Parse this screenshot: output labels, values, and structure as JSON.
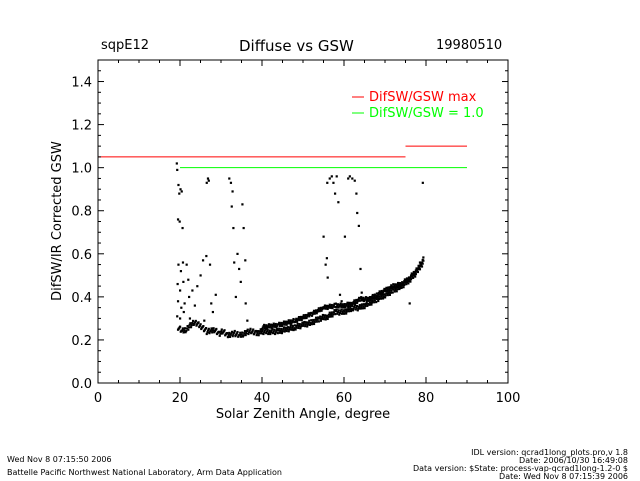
{
  "header": {
    "site": "sqpE12",
    "title": "Diffuse vs GSW",
    "date": "19980510"
  },
  "footer": {
    "left_line1": "Wed Nov  8 07:15:50 2006",
    "left_line2": "Battelle Pacific Northwest National Laboratory, Arm Data Application",
    "right_line1": "IDL version: qcrad1long_plots.pro,v 1.8",
    "right_line2": "Date: 2006/10/30 16:49:08",
    "right_line3": "Data version: $State: process-vap-qcrad1long-1.2-0 $",
    "right_line4": "Date: Wed Nov  8 07:15:39 2006"
  },
  "chart_data": {
    "type": "scatter",
    "title": "Diffuse vs GSW",
    "xlabel": "Solar Zenith Angle, degree",
    "ylabel": "DifSW/IR Corrected GSW",
    "xlim": [
      0,
      100
    ],
    "ylim": [
      0.0,
      1.5
    ],
    "xticks": [
      "0",
      "20",
      "40",
      "60",
      "80",
      "100"
    ],
    "yticks": [
      "0.0",
      "0.2",
      "0.4",
      "0.6",
      "0.8",
      "1.0",
      "1.2",
      "1.4"
    ],
    "legend": [
      {
        "label": "DifSW/GSW max",
        "color": "#ff0000"
      },
      {
        "label": "DifSW/GSW = 1.0",
        "color": "#00ff00"
      }
    ],
    "reference_lines": [
      {
        "name": "DifSW/GSW max",
        "color": "#ff0000",
        "segments": [
          [
            0,
            75,
            1.05
          ],
          [
            75,
            90,
            1.1
          ]
        ]
      },
      {
        "name": "DifSW/GSW = 1.0",
        "color": "#00ff00",
        "segments": [
          [
            20,
            90,
            1.0
          ]
        ]
      }
    ],
    "points": [
      [
        19.2,
        1.02
      ],
      [
        19.3,
        0.99
      ],
      [
        19.6,
        0.92
      ],
      [
        19.8,
        0.88
      ],
      [
        20.1,
        0.9
      ],
      [
        20.4,
        0.89
      ],
      [
        19.5,
        0.76
      ],
      [
        19.9,
        0.75
      ],
      [
        20.6,
        0.72
      ],
      [
        19.6,
        0.55
      ],
      [
        20.2,
        0.52
      ],
      [
        20.7,
        0.56
      ],
      [
        19.4,
        0.46
      ],
      [
        20.0,
        0.43
      ],
      [
        20.8,
        0.47
      ],
      [
        19.5,
        0.38
      ],
      [
        20.3,
        0.35
      ],
      [
        20.9,
        0.33
      ],
      [
        19.3,
        0.31
      ],
      [
        20.0,
        0.3
      ],
      [
        21.1,
        0.37
      ],
      [
        21.6,
        0.55
      ],
      [
        22.0,
        0.48
      ],
      [
        22.2,
        0.4
      ],
      [
        22.4,
        0.3
      ],
      [
        23.0,
        0.43
      ],
      [
        23.6,
        0.36
      ],
      [
        24.2,
        0.45
      ],
      [
        25.0,
        0.5
      ],
      [
        25.6,
        0.57
      ],
      [
        25.9,
        0.29
      ],
      [
        26.4,
        0.59
      ],
      [
        26.5,
        0.93
      ],
      [
        26.8,
        0.95
      ],
      [
        27.0,
        0.94
      ],
      [
        27.3,
        0.55
      ],
      [
        27.6,
        0.37
      ],
      [
        28.0,
        0.33
      ],
      [
        28.7,
        0.41
      ],
      [
        32.0,
        0.95
      ],
      [
        32.4,
        0.93
      ],
      [
        32.8,
        0.89
      ],
      [
        32.6,
        0.82
      ],
      [
        33.0,
        0.72
      ],
      [
        33.2,
        0.56
      ],
      [
        33.6,
        0.4
      ],
      [
        34.0,
        0.6
      ],
      [
        34.4,
        0.53
      ],
      [
        34.8,
        0.47
      ],
      [
        35.2,
        0.83
      ],
      [
        35.5,
        0.72
      ],
      [
        35.9,
        0.57
      ],
      [
        36.0,
        0.37
      ],
      [
        36.4,
        0.29
      ],
      [
        55.0,
        0.68
      ],
      [
        55.5,
        0.55
      ],
      [
        55.8,
        0.58
      ],
      [
        56.0,
        0.49
      ],
      [
        56.5,
        0.95
      ],
      [
        57.0,
        0.96
      ],
      [
        57.4,
        0.93
      ],
      [
        57.8,
        0.88
      ],
      [
        58.2,
        0.96
      ],
      [
        55.9,
        0.93
      ],
      [
        58.6,
        0.84
      ],
      [
        59.0,
        0.41
      ],
      [
        59.4,
        0.38
      ],
      [
        61.0,
        0.95
      ],
      [
        61.4,
        0.96
      ],
      [
        62.0,
        0.95
      ],
      [
        62.6,
        0.94
      ],
      [
        63.0,
        0.88
      ],
      [
        63.2,
        0.79
      ],
      [
        63.6,
        0.73
      ],
      [
        64.0,
        0.53
      ],
      [
        64.3,
        0.42
      ],
      [
        60.2,
        0.68
      ],
      [
        76.0,
        0.37
      ],
      [
        78.5,
        0.56
      ],
      [
        79.2,
        0.93
      ]
    ],
    "lower_envelope": [
      [
        19.5,
        0.26
      ],
      [
        20.5,
        0.24
      ],
      [
        21.5,
        0.25
      ],
      [
        22.5,
        0.27
      ],
      [
        23.5,
        0.28
      ],
      [
        24.5,
        0.27
      ],
      [
        25.5,
        0.26
      ],
      [
        26.5,
        0.24
      ],
      [
        27.5,
        0.24
      ],
      [
        28.5,
        0.25
      ],
      [
        29.5,
        0.23
      ],
      [
        30.5,
        0.24
      ],
      [
        31.5,
        0.22
      ],
      [
        32.5,
        0.23
      ],
      [
        33.5,
        0.23
      ],
      [
        34.5,
        0.22
      ],
      [
        35.5,
        0.23
      ],
      [
        36.5,
        0.24
      ],
      [
        37.5,
        0.24
      ],
      [
        38.5,
        0.23
      ],
      [
        40,
        0.24
      ],
      [
        42,
        0.24
      ],
      [
        44,
        0.24
      ],
      [
        46,
        0.25
      ],
      [
        48,
        0.26
      ],
      [
        50,
        0.27
      ],
      [
        52,
        0.28
      ],
      [
        54,
        0.3
      ],
      [
        56,
        0.31
      ],
      [
        58,
        0.33
      ],
      [
        60,
        0.33
      ],
      [
        62,
        0.35
      ],
      [
        64,
        0.35
      ],
      [
        66,
        0.37
      ],
      [
        68,
        0.39
      ],
      [
        70,
        0.41
      ],
      [
        72,
        0.43
      ],
      [
        74,
        0.45
      ],
      [
        76,
        0.48
      ],
      [
        78,
        0.52
      ],
      [
        79.5,
        0.57
      ]
    ],
    "upper_envelope": [
      [
        40,
        0.26
      ],
      [
        44,
        0.27
      ],
      [
        48,
        0.29
      ],
      [
        52,
        0.32
      ],
      [
        55,
        0.35
      ],
      [
        58,
        0.36
      ],
      [
        60,
        0.36
      ],
      [
        62,
        0.37
      ],
      [
        64,
        0.39
      ],
      [
        66,
        0.39
      ],
      [
        68,
        0.41
      ],
      [
        70,
        0.43
      ],
      [
        72,
        0.45
      ],
      [
        74,
        0.46
      ],
      [
        76,
        0.49
      ],
      [
        78,
        0.53
      ],
      [
        79.5,
        0.58
      ]
    ]
  }
}
